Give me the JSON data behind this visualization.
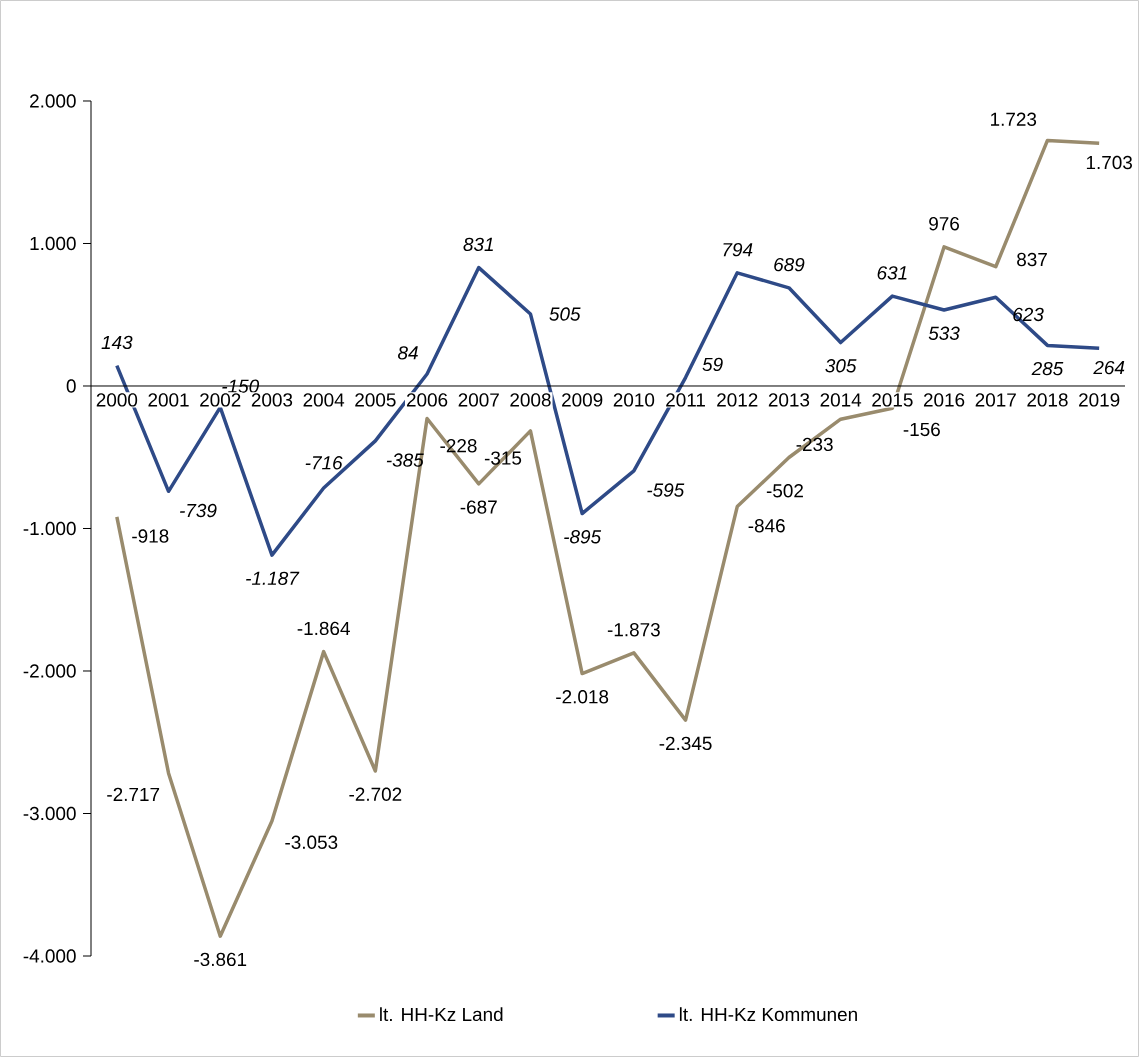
{
  "chart_data": {
    "type": "line",
    "categories": [
      "2000",
      "2001",
      "2002",
      "2003",
      "2004",
      "2005",
      "2006",
      "2007",
      "2008",
      "2009",
      "2010",
      "2011",
      "2012",
      "2013",
      "2014",
      "2015",
      "2016",
      "2017",
      "2018",
      "2019"
    ],
    "series": [
      {
        "name": "lt. HH-Kz Land",
        "color": "#998b6d",
        "values": [
          -918,
          -2717,
          -3861,
          -3053,
          -1864,
          -2702,
          -228,
          -687,
          -315,
          -2018,
          -1873,
          -2345,
          -846,
          -502,
          -233,
          -156,
          976,
          837,
          1723,
          1703
        ],
        "value_labels": [
          "-918",
          "-2.717",
          "-3.861",
          "-3.053",
          "-1.864",
          "-2.702",
          "-228",
          "-687",
          "-315",
          "-2.018",
          "-1.873",
          "-2.345",
          "-846",
          "-502",
          "-233",
          "-156",
          "976",
          "837",
          "1.723",
          "1.703"
        ]
      },
      {
        "name": "lt. HH-Kz Kommunen",
        "color": "#2e4a87",
        "values": [
          143,
          -739,
          -150,
          -1187,
          -716,
          -385,
          84,
          831,
          505,
          -895,
          -595,
          59,
          794,
          689,
          305,
          631,
          533,
          623,
          285,
          264
        ],
        "value_labels": [
          "143",
          "-739",
          "-150",
          "-1.187",
          "-716",
          "-385",
          "84",
          "831",
          "505",
          "-895",
          "-595",
          "59",
          "794",
          "689",
          "305",
          "631",
          "533",
          "623",
          "285",
          "264"
        ]
      }
    ],
    "ylim": [
      -4000,
      2000
    ],
    "yticks": [
      {
        "value": -4000,
        "label": "-4.000"
      },
      {
        "value": -3000,
        "label": "-3.000"
      },
      {
        "value": -2000,
        "label": "-2.000"
      },
      {
        "value": -1000,
        "label": "-1.000"
      },
      {
        "value": 0,
        "label": "0"
      },
      {
        "value": 1000,
        "label": "1.000"
      },
      {
        "value": 2000,
        "label": "2.000"
      }
    ],
    "legend": "bottom",
    "grid": false,
    "marker": "none",
    "line_style": "solid"
  }
}
